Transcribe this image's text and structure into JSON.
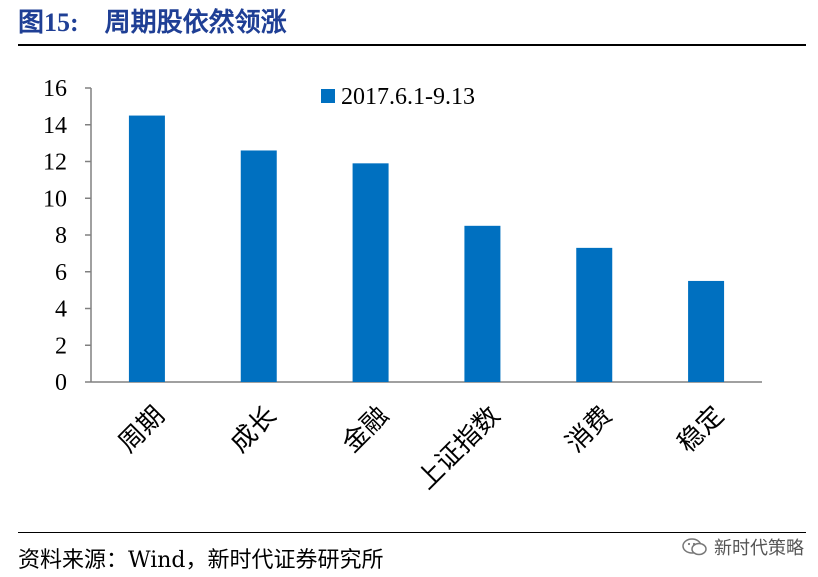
{
  "header": {
    "fig_number": "图15:",
    "title": "周期股依然领涨"
  },
  "chart_data": {
    "type": "bar",
    "categories": [
      "周期",
      "成长",
      "金融",
      "上证指数",
      "消费",
      "稳定"
    ],
    "series": [
      {
        "name": "2017.6.1-9.13",
        "values": [
          14.5,
          12.6,
          11.9,
          8.5,
          7.3,
          5.5
        ]
      }
    ],
    "ylim": [
      0,
      16
    ],
    "yticks": [
      0,
      2,
      4,
      6,
      8,
      10,
      12,
      14,
      16
    ],
    "grid": false,
    "legend_position": "top",
    "bar_color": "#0070c0"
  },
  "footer": {
    "source": "资料来源：Wind，新时代证券研究所",
    "watermark": "新时代策略"
  }
}
